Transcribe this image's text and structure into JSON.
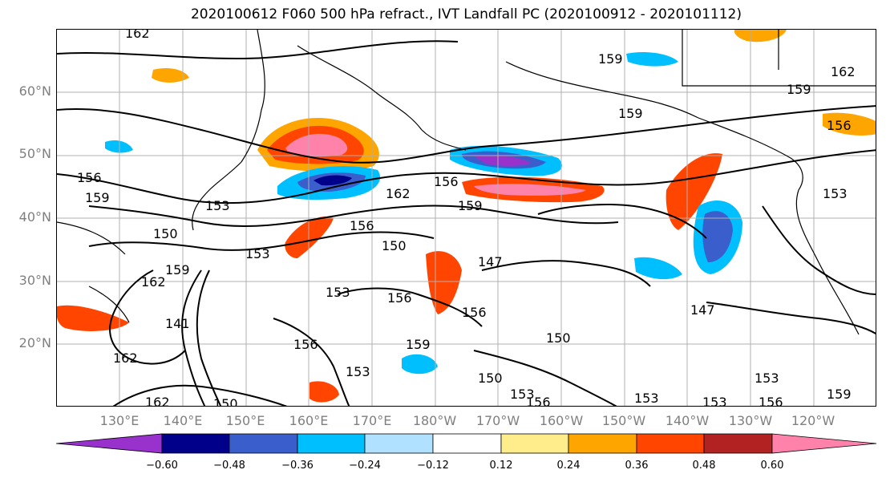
{
  "title": "2020100612 F060 500 hPa refract., IVT Landfall PC (2020100912 - 2020101112)",
  "lat_labels": [
    "60°N",
    "50°N",
    "40°N",
    "30°N",
    "20°N"
  ],
  "lon_labels": [
    "130°E",
    "140°E",
    "150°E",
    "160°E",
    "170°E",
    "180°W",
    "170°W",
    "160°W",
    "150°W",
    "140°W",
    "130°W",
    "120°W"
  ],
  "colorbar": {
    "ticks": [
      "−0.60",
      "−0.48",
      "−0.36",
      "−0.24",
      "−0.12",
      "0.12",
      "0.24",
      "0.36",
      "0.48",
      "0.60"
    ],
    "colors": [
      "#9932cc",
      "#00008b",
      "#3a5fcd",
      "#00bfff",
      "#b0e2ff",
      "#ffffff",
      "#ffec8b",
      "#ffa500",
      "#ff4500",
      "#b22222",
      "#ff82ab"
    ]
  },
  "contour_labels": [
    "162",
    "159",
    "162",
    "159",
    "156",
    "159",
    "156",
    "159",
    "153",
    "156",
    "162",
    "159",
    "153",
    "150",
    "156",
    "150",
    "153",
    "147",
    "162",
    "159",
    "153",
    "156",
    "156",
    "147",
    "141",
    "150",
    "156",
    "159",
    "162",
    "153",
    "150",
    "153",
    "156",
    "150",
    "153",
    "156",
    "159",
    "153",
    "162",
    "153"
  ],
  "colors": {
    "axis_text": "#7f7f7f",
    "contour": "#000000",
    "grid": "#b0b0b0",
    "coast": "#000000"
  }
}
